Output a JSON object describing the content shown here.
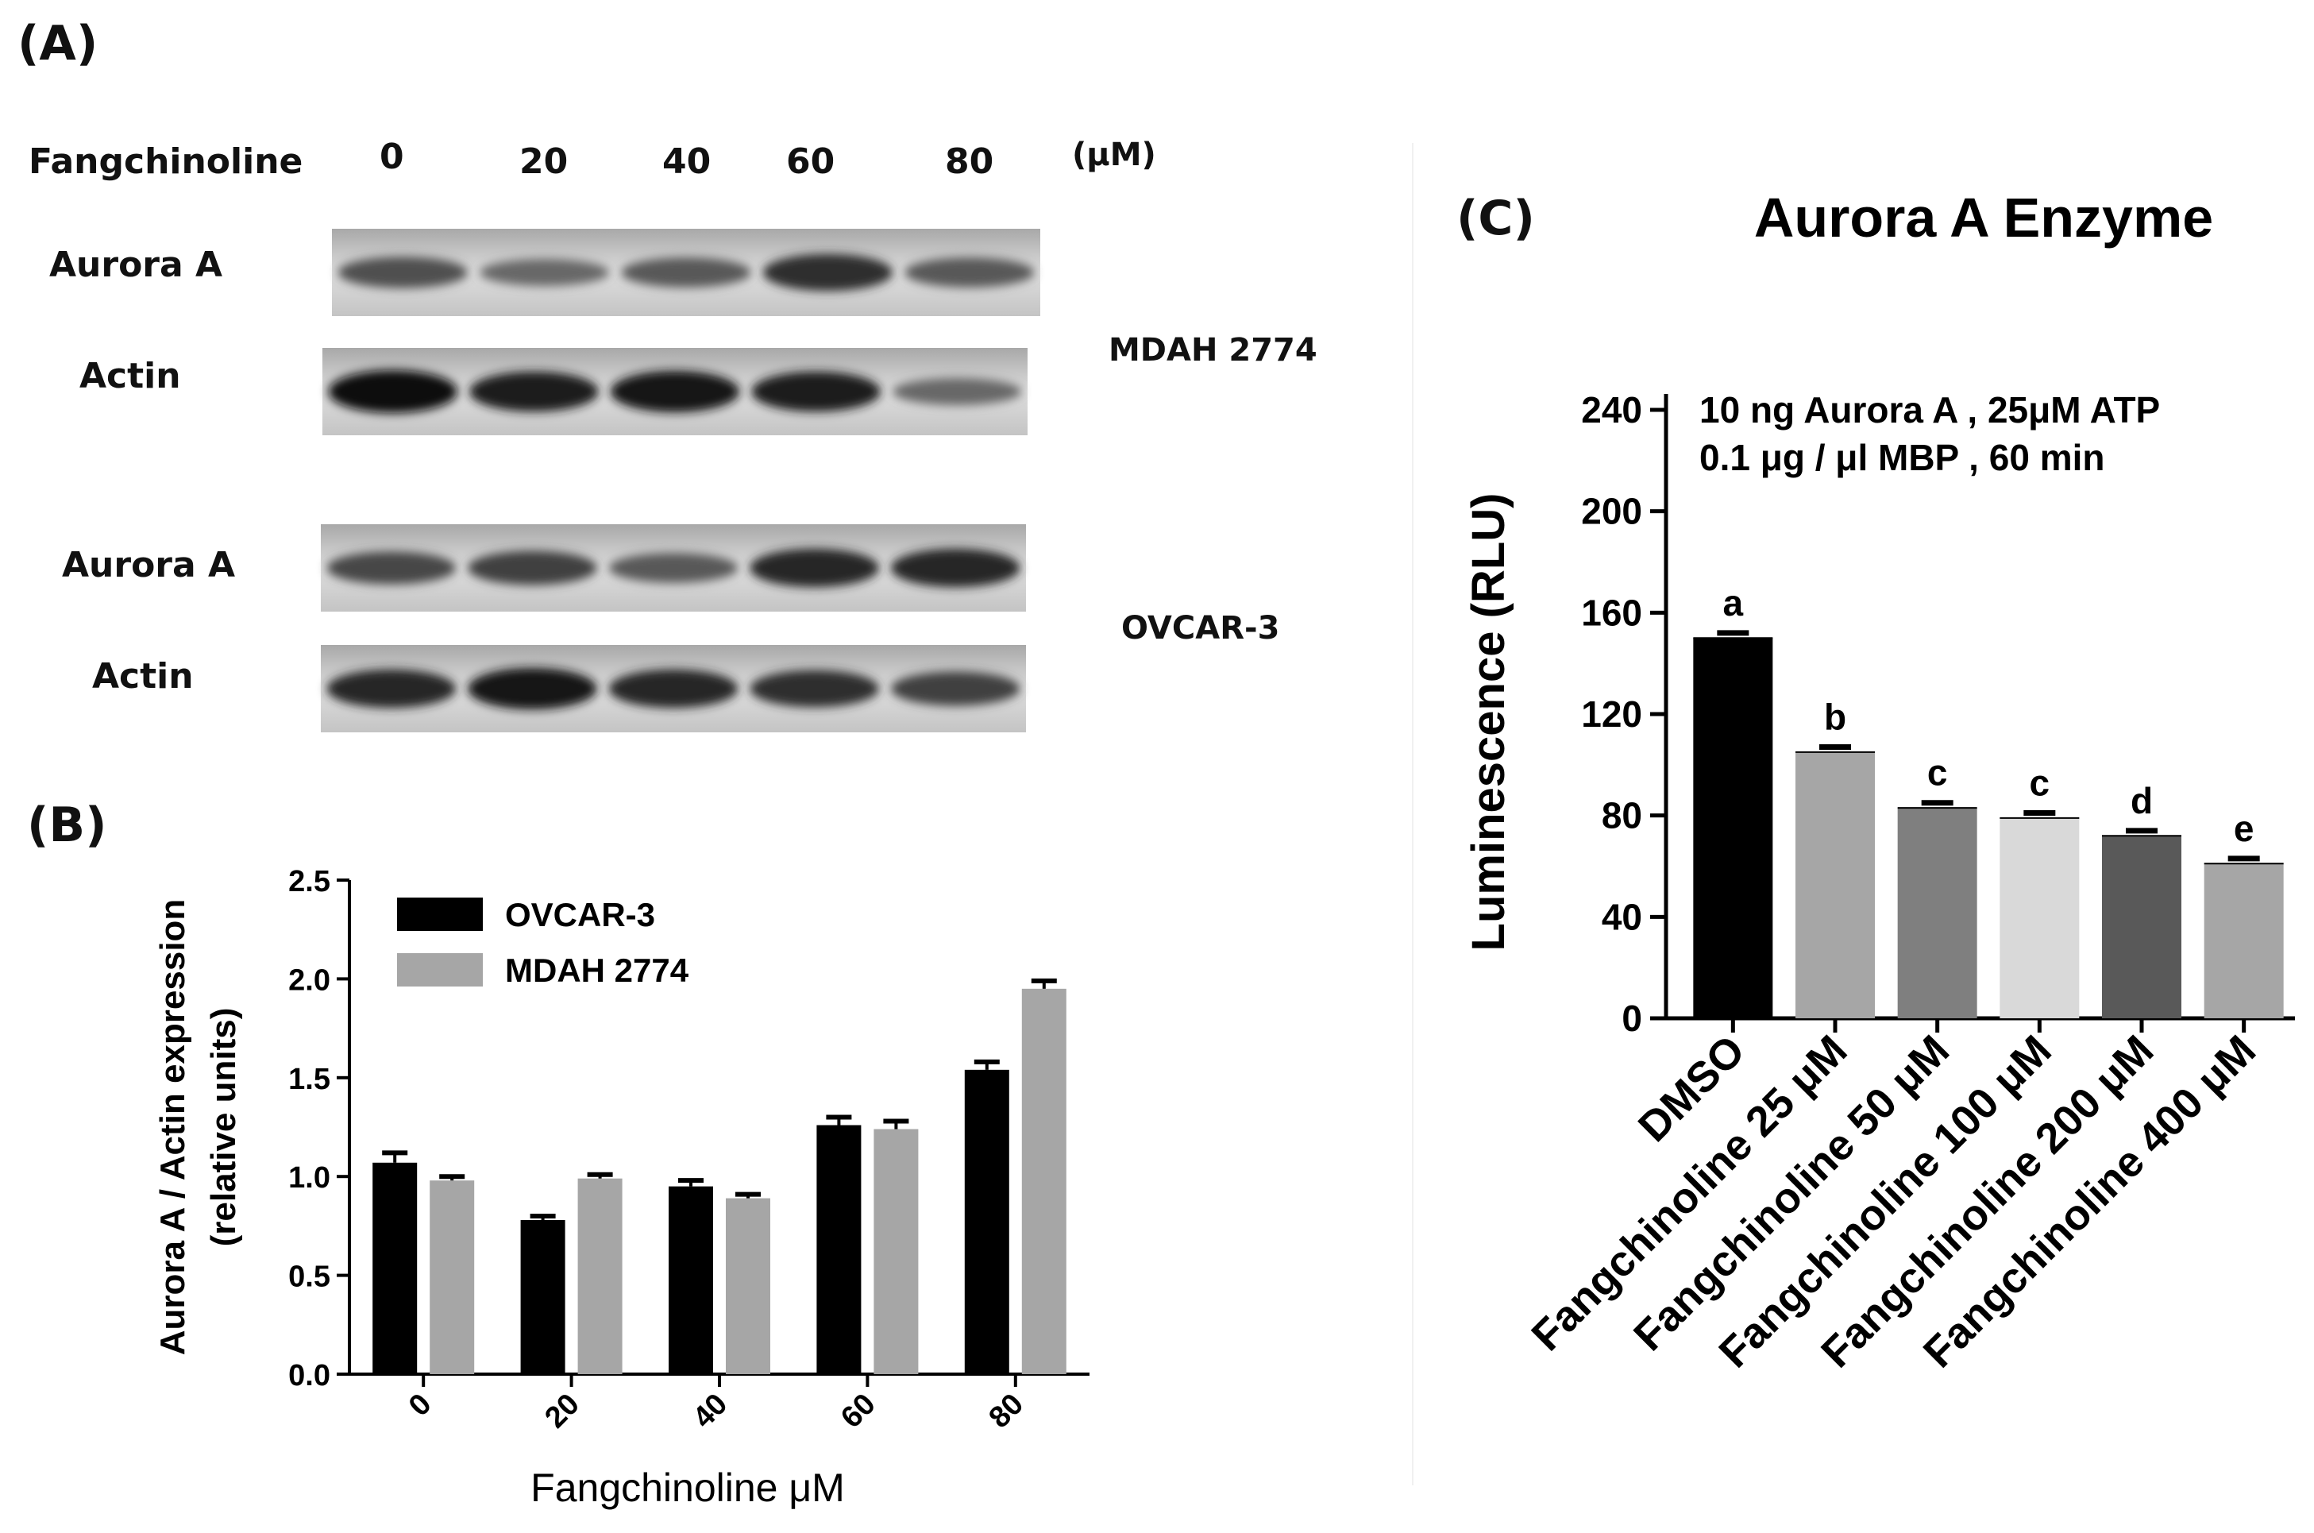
{
  "panel_a": {
    "label": "(A)",
    "treatment_label": "Fangchinoline",
    "concentrations": [
      "0",
      "20",
      "40",
      "60",
      "80"
    ],
    "unit": "(μM)",
    "blot_rows": [
      {
        "name": "Aurora A",
        "cell_line": "MDAH 2774"
      },
      {
        "name": "Actin",
        "cell_line": "MDAH 2774"
      },
      {
        "name": "Aurora A",
        "cell_line": "OVCAR-3"
      },
      {
        "name": "Actin",
        "cell_line": "OVCAR-3"
      }
    ],
    "cell_line_1": "MDAH 2774",
    "cell_line_2": "OVCAR-3",
    "band_intensity": {
      "aurora_mdah": [
        0.55,
        0.4,
        0.5,
        0.75,
        0.5
      ],
      "actin_mdah": [
        0.95,
        0.85,
        0.9,
        0.85,
        0.4
      ],
      "aurora_ovcar": [
        0.6,
        0.65,
        0.5,
        0.8,
        0.8
      ],
      "actin_ovcar": [
        0.8,
        0.9,
        0.8,
        0.75,
        0.65
      ]
    }
  },
  "chart_data": [
    {
      "panel": "(B)",
      "type": "bar",
      "title": "",
      "xlabel": "Fangchinoline μM",
      "ylabel": "Aurora A / Actin expression",
      "ylabel2": "(relative units)",
      "categories": [
        "0",
        "20",
        "40",
        "60",
        "80"
      ],
      "ylim": [
        0,
        2.5
      ],
      "yticks": [
        "0.0",
        "0.5",
        "1.0",
        "1.5",
        "2.0",
        "2.5"
      ],
      "legend_position": "top-left",
      "series": [
        {
          "name": "OVCAR-3",
          "color": "#000000",
          "values": [
            1.07,
            0.78,
            0.95,
            1.26,
            1.54
          ],
          "errors": [
            0.05,
            0.02,
            0.03,
            0.04,
            0.04
          ]
        },
        {
          "name": "MDAH 2774",
          "color": "#a6a6a6",
          "values": [
            0.98,
            0.99,
            0.89,
            1.24,
            1.95
          ],
          "errors": [
            0.02,
            0.02,
            0.02,
            0.04,
            0.04
          ]
        }
      ]
    },
    {
      "panel": "(C)",
      "type": "bar",
      "title": "Aurora A Enzyme",
      "xlabel": "",
      "ylabel": "Luminescence (RLU)",
      "annotation_line1": "10 ng Aurora A , 25μM  ATP",
      "annotation_line2": "0.1 μg / μl MBP , 60 min",
      "categories": [
        "DMSO",
        "Fangchinoline 25 μM",
        "Fangchinoline 50 μM",
        "Fangchinoline 100 μM",
        "Fangchinoline 200 μM",
        "Fangchinoline 400 μM"
      ],
      "values": [
        150,
        105,
        83,
        79,
        72,
        61
      ],
      "errors": [
        2,
        2,
        2,
        2,
        2,
        2
      ],
      "letters": [
        "a",
        "b",
        "c",
        "c",
        "d",
        "e"
      ],
      "colors": [
        "#000000",
        "#a6a6a6",
        "#7f7f7f",
        "#d9d9d9",
        "#595959",
        "#a6a6a6"
      ],
      "ylim": [
        0,
        240
      ],
      "yticks": [
        "0",
        "40",
        "80",
        "120",
        "160",
        "200",
        "240"
      ]
    }
  ]
}
